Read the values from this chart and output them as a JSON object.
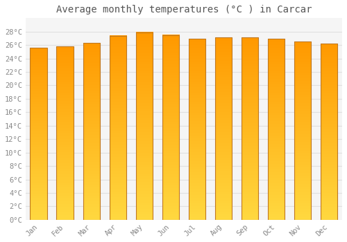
{
  "title": "Average monthly temperatures (°C ) in Carcar",
  "months": [
    "Jan",
    "Feb",
    "Mar",
    "Apr",
    "May",
    "Jun",
    "Jul",
    "Aug",
    "Sep",
    "Oct",
    "Nov",
    "Dec"
  ],
  "values": [
    25.6,
    25.8,
    26.3,
    27.4,
    27.9,
    27.5,
    26.9,
    27.1,
    27.1,
    26.9,
    26.5,
    26.2
  ],
  "bar_color_top": "#FFD040",
  "bar_color_bottom": "#FF9900",
  "bar_edge_color": "#C07820",
  "ylim": [
    0,
    30
  ],
  "yticks": [
    0,
    2,
    4,
    6,
    8,
    10,
    12,
    14,
    16,
    18,
    20,
    22,
    24,
    26,
    28
  ],
  "ytick_labels": [
    "0°C",
    "2°C",
    "4°C",
    "6°C",
    "8°C",
    "10°C",
    "12°C",
    "14°C",
    "16°C",
    "18°C",
    "20°C",
    "22°C",
    "24°C",
    "26°C",
    "28°C"
  ],
  "background_color": "#ffffff",
  "plot_bg_color": "#f5f5f5",
  "grid_color": "#e0e0e0",
  "title_fontsize": 10,
  "tick_fontsize": 7.5,
  "tick_color": "#888888",
  "font_family": "monospace"
}
